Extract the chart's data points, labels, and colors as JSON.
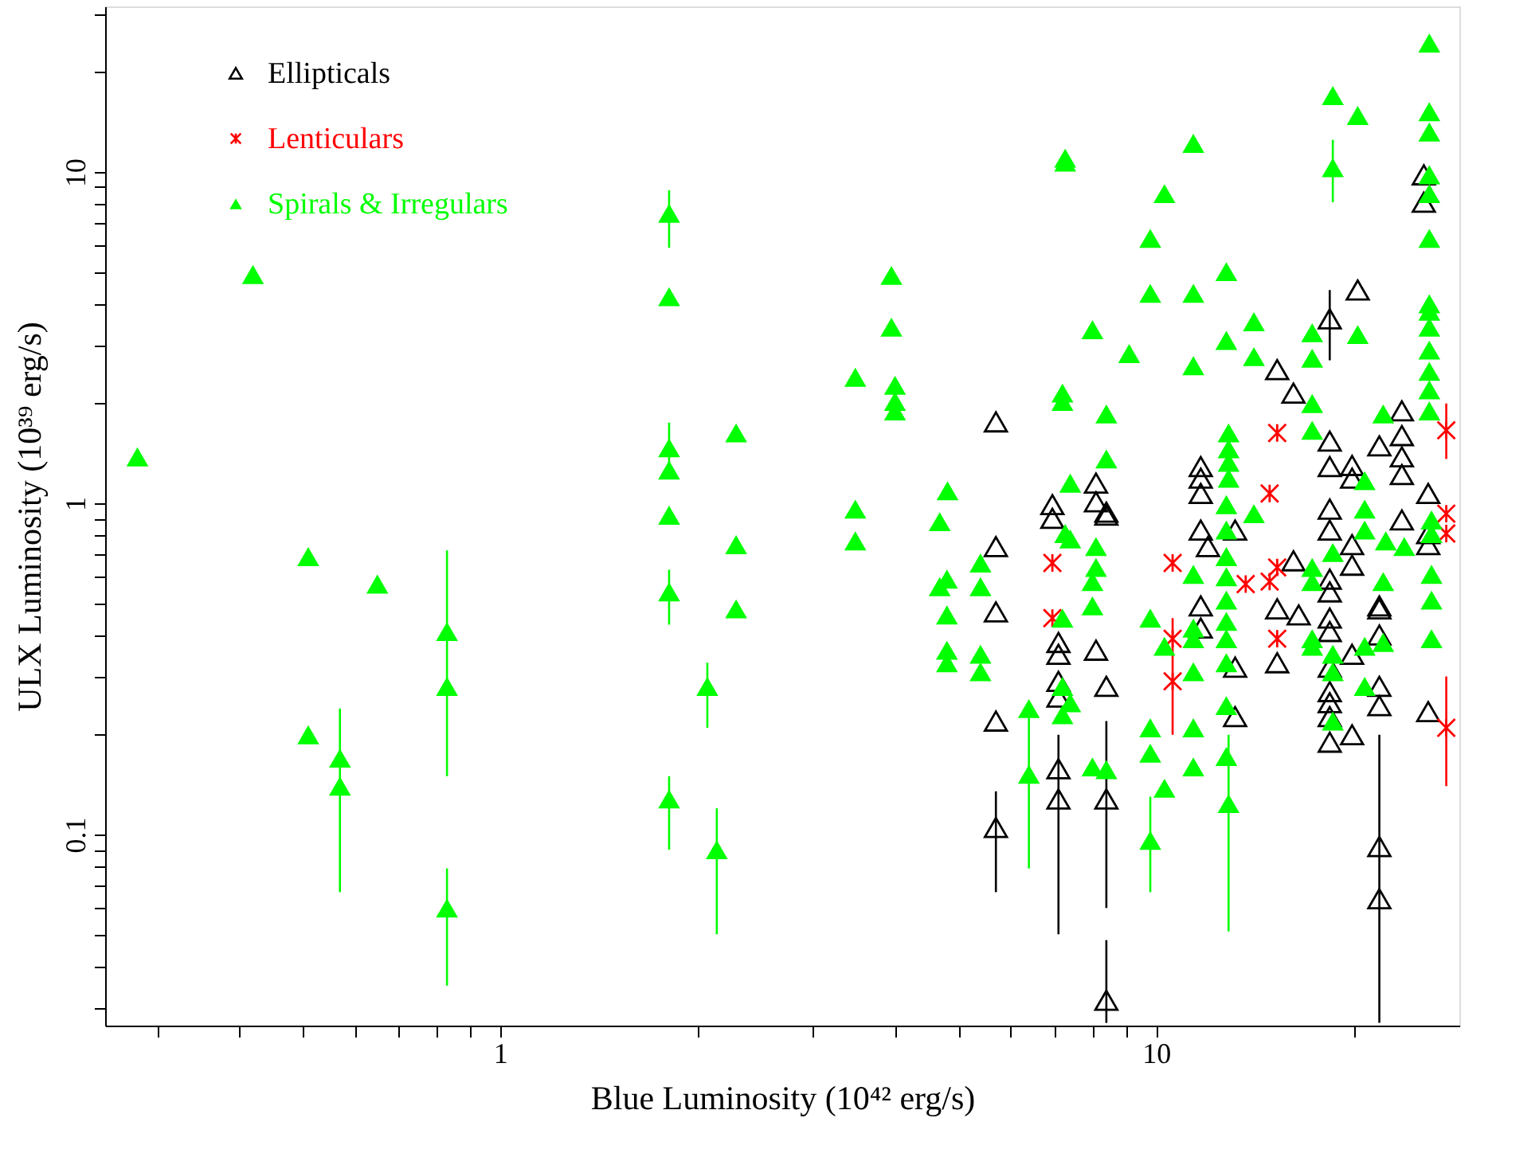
{
  "chart_data": {
    "type": "scatter",
    "xlabel": "Blue Luminosity (10⁴² erg/s)",
    "ylabel": "ULX Luminosity (10³⁹ erg/s)",
    "log": "xy",
    "grid": false,
    "legend": "top left",
    "xlim": [
      0.25,
      29
    ],
    "ylim": [
      0.0265,
      31.6
    ],
    "xticks": [
      {
        "value": 0.3,
        "label": null
      },
      {
        "value": 0.4,
        "label": null
      },
      {
        "value": 0.5,
        "label": null
      },
      {
        "value": 0.6,
        "label": null
      },
      {
        "value": 0.7,
        "label": null
      },
      {
        "value": 0.8,
        "label": null
      },
      {
        "value": 0.9,
        "label": null
      },
      1,
      {
        "value": 2,
        "label": null
      },
      {
        "value": 3,
        "label": null
      },
      {
        "value": 4,
        "label": null
      },
      {
        "value": 5,
        "label": null
      },
      {
        "value": 6,
        "label": null
      },
      {
        "value": 7,
        "label": null
      },
      {
        "value": 8,
        "label": null
      },
      {
        "value": 9,
        "label": null
      },
      10,
      {
        "value": 20,
        "label": null
      }
    ],
    "yticks": [
      {
        "value": 0.03,
        "label": null
      },
      {
        "value": 0.04,
        "label": null
      },
      {
        "value": 0.05,
        "label": null
      },
      {
        "value": 0.06,
        "label": null
      },
      {
        "value": 0.07,
        "label": null
      },
      {
        "value": 0.08,
        "label": null
      },
      {
        "value": 0.09,
        "label": null
      },
      0.1,
      {
        "value": 0.2,
        "label": null
      },
      {
        "value": 0.3,
        "label": null
      },
      {
        "value": 0.4,
        "label": null
      },
      {
        "value": 0.5,
        "label": null
      },
      {
        "value": 0.6,
        "label": null
      },
      {
        "value": 0.7,
        "label": null
      },
      {
        "value": 0.8,
        "label": null
      },
      {
        "value": 0.9,
        "label": null
      },
      1,
      {
        "value": 2,
        "label": null
      },
      {
        "value": 3,
        "label": null
      },
      {
        "value": 4,
        "label": null
      },
      {
        "value": 5,
        "label": null
      },
      {
        "value": 6,
        "label": null
      },
      {
        "value": 7,
        "label": null
      },
      {
        "value": 8,
        "label": null
      },
      {
        "value": 9,
        "label": null
      },
      10,
      {
        "value": 20,
        "label": null
      },
      {
        "value": 30,
        "label": null
      }
    ],
    "series": [
      {
        "name": "Ellipticals",
        "color": "#000000",
        "marker": "triangle",
        "x": [
          5.7,
          20.3,
          18.4,
          15.3,
          16.2,
          25.6,
          25.6,
          23.7,
          23.7,
          23.7,
          23.7,
          21.9,
          19.9,
          19.9,
          18.4,
          18.4,
          18.4,
          11.7,
          11.7,
          11.7,
          6.95,
          8.1,
          8.1,
          8.4,
          26.0,
          6.95,
          8.4,
          5.7,
          5.7,
          5.7,
          5.7,
          7.1,
          7.1,
          7.1,
          7.1,
          7.1,
          7.1,
          8.1,
          8.4,
          8.4,
          8.4,
          11.7,
          12.0,
          11.7,
          11.7,
          13.2,
          13.2,
          13.2,
          16.2,
          15.3,
          15.3,
          16.5,
          18.4,
          18.4,
          18.4,
          18.4,
          18.4,
          18.4,
          18.4,
          18.4,
          18.4,
          18.4,
          19.9,
          19.9,
          19.9,
          19.9,
          21.9,
          21.9,
          21.9,
          21.9,
          21.9,
          21.9,
          21.9,
          23.7,
          26.0,
          26.0,
          26.0
        ],
        "values": [
          1.76,
          4.4,
          3.6,
          2.53,
          2.15,
          9.8,
          8.1,
          1.9,
          1.6,
          1.38,
          1.22,
          1.49,
          1.3,
          1.19,
          1.54,
          1.29,
          0.96,
          1.29,
          1.19,
          1.07,
          0.99,
          1.15,
          1.01,
          0.94,
          1.07,
          0.9,
          0.92,
          0.74,
          0.47,
          0.22,
          0.105,
          0.38,
          0.35,
          0.29,
          0.26,
          0.158,
          0.128,
          0.36,
          0.28,
          0.128,
          0.0316,
          0.83,
          0.74,
          0.49,
          0.42,
          0.83,
          0.32,
          0.227,
          0.67,
          0.48,
          0.33,
          0.46,
          0.83,
          0.59,
          0.54,
          0.45,
          0.41,
          0.32,
          0.27,
          0.25,
          0.227,
          0.19,
          0.75,
          0.65,
          0.35,
          0.2,
          0.49,
          0.48,
          0.4,
          0.28,
          0.245,
          0.092,
          0.064,
          0.89,
          0.235,
          0.81,
          0.75
        ],
        "errors": [
          null,
          null,
          [
            2.7,
            4.4
          ],
          null,
          null,
          null,
          null,
          null,
          null,
          null,
          null,
          null,
          null,
          null,
          null,
          null,
          null,
          null,
          null,
          null,
          null,
          null,
          null,
          null,
          null,
          null,
          null,
          null,
          null,
          null,
          [
            0.067,
            0.135
          ],
          null,
          null,
          null,
          null,
          null,
          [
            0.05,
            0.2
          ],
          null,
          null,
          [
            0.06,
            0.22
          ],
          [
            0.027,
            0.048
          ],
          null,
          null,
          null,
          null,
          null,
          null,
          null,
          null,
          null,
          null,
          null,
          null,
          null,
          null,
          null,
          null,
          null,
          null,
          null,
          null,
          null,
          null,
          null,
          null,
          null,
          null,
          null,
          null,
          null,
          null,
          null,
          [
            0.027,
            0.2
          ],
          null,
          null,
          null,
          null
        ]
      },
      {
        "name": "Lenticulars",
        "color": "#ff0000",
        "marker": "cross",
        "x": [
          15.3,
          14.9,
          27.7,
          27.7,
          27.7,
          6.95,
          6.95,
          10.6,
          10.6,
          10.6,
          13.7,
          14.9,
          15.3,
          15.3,
          27.7
        ],
        "values": [
          1.63,
          1.07,
          1.66,
          0.93,
          0.81,
          0.66,
          0.45,
          0.66,
          0.39,
          0.29,
          0.57,
          0.58,
          0.64,
          0.39,
          0.21
        ],
        "errors": [
          null,
          null,
          [
            1.36,
            2.0
          ],
          null,
          null,
          null,
          null,
          null,
          null,
          [
            0.2,
            0.45
          ],
          null,
          null,
          null,
          null,
          [
            0.14,
            0.3
          ]
        ]
      },
      {
        "name": "Spirals & Irregulars",
        "color": "#00ff00",
        "marker": "triangle",
        "x": [
          0.28,
          0.42,
          0.51,
          0.51,
          0.57,
          0.57,
          0.65,
          0.83,
          0.83,
          0.83,
          1.81,
          1.81,
          1.81,
          1.81,
          1.81,
          1.81,
          1.81,
          2.07,
          2.14,
          2.29,
          2.29,
          2.29,
          3.48,
          3.48,
          3.48,
          3.95,
          3.95,
          4.0,
          4.0,
          4.0,
          4.81,
          4.68,
          4.8,
          4.68,
          4.8,
          4.8,
          4.8,
          5.4,
          5.4,
          5.4,
          5.4,
          6.4,
          6.4,
          7.27,
          7.27,
          7.2,
          7.2,
          7.4,
          7.27,
          7.4,
          7.2,
          7.2,
          7.4,
          7.2,
          8.0,
          8.4,
          8.4,
          8.1,
          8.1,
          8.0,
          8.0,
          8.0,
          8.4,
          9.1,
          9.8,
          9.8,
          9.8,
          9.8,
          9.8,
          9.8,
          10.3,
          10.3,
          10.3,
          11.4,
          11.4,
          11.4,
          11.4,
          11.4,
          11.4,
          11.4,
          11.4,
          11.4,
          12.8,
          12.8,
          12.9,
          12.9,
          12.9,
          12.9,
          12.8,
          12.8,
          12.8,
          12.8,
          12.8,
          12.8,
          12.8,
          12.8,
          12.8,
          12.8,
          12.9,
          14.1,
          14.1,
          14.1,
          17.3,
          17.3,
          17.3,
          17.3,
          17.3,
          17.3,
          17.3,
          17.3,
          18.6,
          18.6,
          18.6,
          18.6,
          18.6,
          18.6,
          20.3,
          20.3,
          20.8,
          20.8,
          20.8,
          20.8,
          20.8,
          22.2,
          22.4,
          22.2,
          22.2,
          23.9,
          26.1,
          26.1,
          26.1,
          26.1,
          26.1,
          26.1,
          26.1,
          26.1,
          26.1,
          26.1,
          26.1,
          26.1,
          26.1,
          26.3,
          26.3,
          26.3,
          26.3,
          26.3
        ],
        "values": [
          1.38,
          4.9,
          0.69,
          0.2,
          0.17,
          0.14,
          0.57,
          0.41,
          0.28,
          0.06,
          7.5,
          4.2,
          1.47,
          1.26,
          0.92,
          0.54,
          0.128,
          0.28,
          0.09,
          1.63,
          0.75,
          0.48,
          2.4,
          0.96,
          0.77,
          4.87,
          3.4,
          2.27,
          2.03,
          1.9,
          1.09,
          0.88,
          0.59,
          0.56,
          0.46,
          0.36,
          0.33,
          0.66,
          0.56,
          0.35,
          0.31,
          0.24,
          0.152,
          11.0,
          10.7,
          2.15,
          2.03,
          1.15,
          0.81,
          0.78,
          0.45,
          0.28,
          0.25,
          0.23,
          3.34,
          1.86,
          1.36,
          0.74,
          0.64,
          0.58,
          0.49,
          0.16,
          0.157,
          2.83,
          6.3,
          4.3,
          0.45,
          0.21,
          0.176,
          0.096,
          8.6,
          0.37,
          0.138,
          12.2,
          4.3,
          2.6,
          0.61,
          0.42,
          0.39,
          0.31,
          0.21,
          0.16,
          5.0,
          3.1,
          1.63,
          1.46,
          1.33,
          1.19,
          0.99,
          0.83,
          0.69,
          0.6,
          0.51,
          0.44,
          0.39,
          0.33,
          0.245,
          0.172,
          0.124,
          3.53,
          2.77,
          0.93,
          3.27,
          2.74,
          2.0,
          1.66,
          0.64,
          0.58,
          0.39,
          0.37,
          17.0,
          10.3,
          0.71,
          0.35,
          0.31,
          0.22,
          14.8,
          3.23,
          1.17,
          0.96,
          0.83,
          0.37,
          0.28,
          1.86,
          0.77,
          0.58,
          0.38,
          0.74,
          24.5,
          15.2,
          13.2,
          9.8,
          8.6,
          6.3,
          4.0,
          3.8,
          3.4,
          2.9,
          2.5,
          2.2,
          1.9,
          0.89,
          0.81,
          0.61,
          0.51,
          0.39
        ],
        "errors": [
          null,
          null,
          null,
          null,
          [
            0.067,
            0.24
          ],
          null,
          null,
          [
            0.15,
            0.72
          ],
          null,
          [
            0.035,
            0.079
          ],
          [
            5.9,
            8.8
          ],
          null,
          [
            1.2,
            1.75
          ],
          null,
          null,
          [
            0.43,
            0.63
          ],
          [
            0.09,
            0.15
          ],
          [
            0.21,
            0.33
          ],
          [
            0.05,
            0.12
          ],
          null,
          null,
          null,
          null,
          null,
          null,
          null,
          null,
          null,
          null,
          null,
          null,
          null,
          null,
          null,
          null,
          null,
          null,
          null,
          null,
          null,
          null,
          null,
          [
            0.079,
            0.25
          ],
          null,
          null,
          null,
          null,
          null,
          null,
          null,
          null,
          null,
          null,
          null,
          null,
          null,
          null,
          null,
          null,
          null,
          null,
          null,
          null,
          null,
          null,
          null,
          null,
          null,
          null,
          [
            0.067,
            0.13
          ],
          null,
          null,
          null,
          null,
          null,
          null,
          null,
          null,
          null,
          null,
          null,
          null,
          null,
          null,
          null,
          null,
          null,
          null,
          null,
          null,
          null,
          null,
          null,
          null,
          null,
          null,
          null,
          null,
          [
            0.051,
            0.2
          ],
          null,
          null,
          null,
          null,
          null,
          null,
          null,
          null,
          null,
          null,
          null,
          null,
          [
            8.1,
            12.5
          ],
          null,
          null,
          null,
          null,
          null,
          null,
          null,
          null,
          null,
          null,
          null,
          null,
          null,
          null,
          null,
          null,
          null,
          null,
          null,
          null,
          null,
          null,
          null,
          null,
          null,
          null,
          null,
          null,
          null,
          null,
          null,
          null,
          null,
          null
        ]
      }
    ]
  }
}
